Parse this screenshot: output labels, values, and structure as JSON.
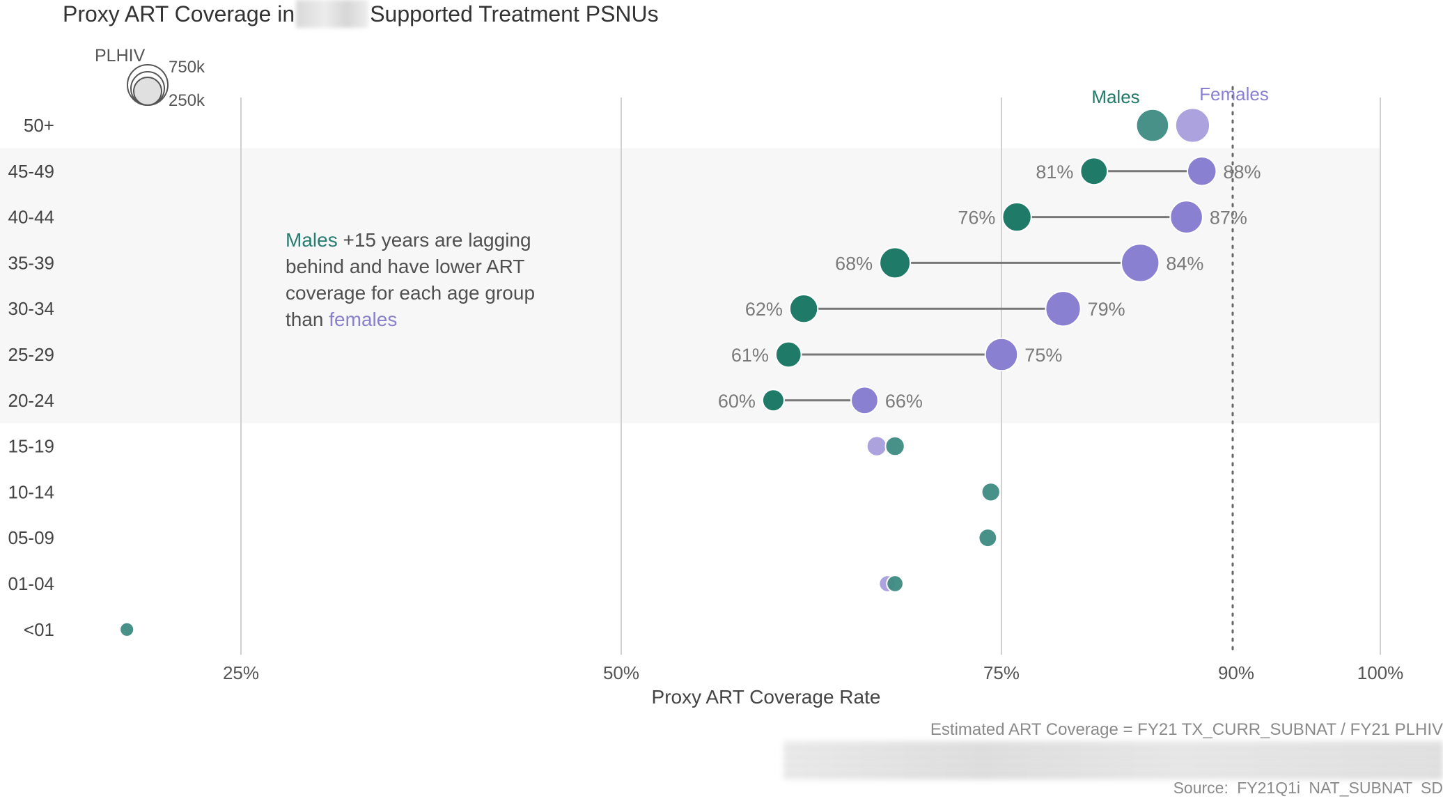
{
  "title": {
    "prefix": "Proxy ART Coverage in",
    "suffix": "Supported Treatment PSNUs"
  },
  "annotation": {
    "males_word": "Males",
    "text_1": " +15 years are lagging behind  and have lower ART coverage for each age group than ",
    "females_word": "females"
  },
  "footnote": "Estimated ART Coverage = FY21 TX_CURR_SUBNAT / FY21 PLHIV",
  "source": "Source:  FY21Q1i  NAT_SUBNAT  SD",
  "colors": {
    "male": "#1f7a68",
    "male_minor": "#3f8c83",
    "female": "#8a80d2",
    "female_light": "#a79edd",
    "band": "#f7f7f7",
    "grid": "#d0d0d0",
    "connector": "#777777",
    "label": "#7a7a7a"
  },
  "chart_data": {
    "type": "scatter",
    "xlabel": "Proxy ART Coverage Rate",
    "xlim": [
      0.05,
      1.0
    ],
    "x_ticks": [
      {
        "value": 0.25,
        "label": "25%"
      },
      {
        "value": 0.5,
        "label": "50%"
      },
      {
        "value": 0.75,
        "label": "75%"
      },
      {
        "value": 0.9,
        "label": "90%"
      },
      {
        "value": 1.0,
        "label": "100%"
      }
    ],
    "target_line": 0.9,
    "size_legend": {
      "title": "PLHIV",
      "entries": [
        "750k",
        "250k"
      ]
    },
    "series_labels": {
      "male": "Males",
      "female": "Females"
    },
    "highlight_band": [
      "45-49",
      "20-24"
    ],
    "categories": [
      "50+",
      "45-49",
      "40-44",
      "35-39",
      "30-34",
      "25-29",
      "20-24",
      "15-19",
      "10-14",
      "05-09",
      "01-04",
      "<01"
    ],
    "points": [
      {
        "age": "50+",
        "male": 0.848,
        "female": 0.874,
        "male_size": 0.55,
        "female_size": 0.6,
        "labeled": false,
        "emph": false
      },
      {
        "age": "45-49",
        "male": 0.81,
        "female": 0.88,
        "male_size": 0.4,
        "female_size": 0.45,
        "labeled": true,
        "male_label": "81%",
        "female_label": "88%",
        "emph": true
      },
      {
        "age": "40-44",
        "male": 0.76,
        "female": 0.87,
        "male_size": 0.45,
        "female_size": 0.55,
        "labeled": true,
        "male_label": "76%",
        "female_label": "87%",
        "emph": true
      },
      {
        "age": "35-39",
        "male": 0.68,
        "female": 0.84,
        "male_size": 0.5,
        "female_size": 0.7,
        "labeled": true,
        "male_label": "68%",
        "female_label": "84%",
        "emph": true
      },
      {
        "age": "30-34",
        "male": 0.62,
        "female": 0.79,
        "male_size": 0.43,
        "female_size": 0.62,
        "labeled": true,
        "male_label": "62%",
        "female_label": "79%",
        "emph": true
      },
      {
        "age": "25-29",
        "male": 0.61,
        "female": 0.75,
        "male_size": 0.36,
        "female_size": 0.55,
        "labeled": true,
        "male_label": "61%",
        "female_label": "75%",
        "emph": true
      },
      {
        "age": "20-24",
        "male": 0.6,
        "female": 0.66,
        "male_size": 0.25,
        "female_size": 0.4,
        "labeled": true,
        "male_label": "60%",
        "female_label": "66%",
        "emph": true
      },
      {
        "age": "15-19",
        "male": 0.68,
        "female": 0.668,
        "male_size": 0.18,
        "female_size": 0.2,
        "labeled": false,
        "emph": false
      },
      {
        "age": "10-14",
        "male": 0.743,
        "female": null,
        "male_size": 0.16,
        "female_size": 0,
        "labeled": false,
        "emph": false
      },
      {
        "age": "05-09",
        "male": 0.741,
        "female": null,
        "male_size": 0.15,
        "female_size": 0,
        "labeled": false,
        "emph": false
      },
      {
        "age": "01-04",
        "male": 0.68,
        "female": 0.675,
        "male_size": 0.11,
        "female_size": 0.11,
        "labeled": false,
        "emph": false
      },
      {
        "age": "<01",
        "male": 0.175,
        "female": null,
        "male_size": 0.04,
        "female_size": 0,
        "labeled": false,
        "emph": false
      }
    ]
  }
}
